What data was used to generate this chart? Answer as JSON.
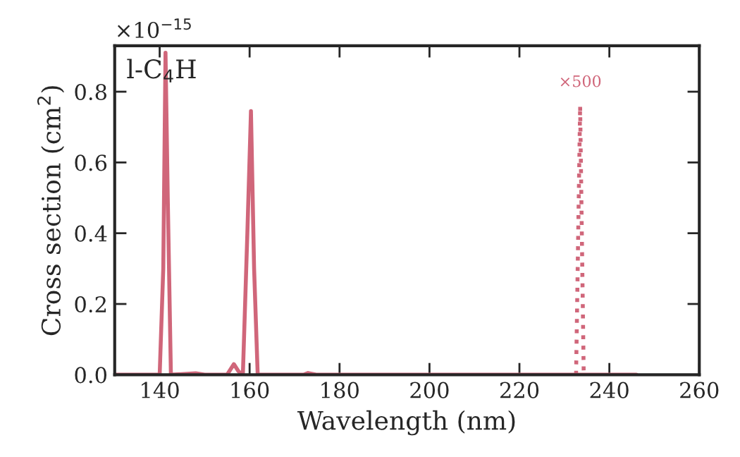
{
  "chart_data": {
    "type": "line",
    "xlabel": "Wavelength (nm)",
    "ylabel": "Cross section (cm$^{2}$)",
    "annotations": [
      "×10$^{−15}$",
      "l-C$_{4}$H",
      "×500"
    ],
    "series": [
      {
        "color": "#d0667a",
        "line_style": "solid",
        "x": [
          130,
          140,
          140.8,
          141.3,
          141.8,
          142.5,
          148,
          150,
          155,
          156.5,
          157.5,
          158.5,
          159.5,
          160.3,
          161,
          161.8,
          172,
          173,
          175,
          246
        ],
        "values": [
          0,
          0,
          0.3,
          0.91,
          0.5,
          0,
          0.004,
          0,
          0,
          0.03,
          0.01,
          0,
          0.4,
          0.745,
          0.3,
          0,
          0,
          0.005,
          0,
          0
        ]
      },
      {
        "color": "#d0667a",
        "line_style": "dotted",
        "x": [
          232.6,
          233.5,
          234.3
        ],
        "values": [
          0,
          0.76,
          0
        ]
      }
    ],
    "xlim": [
      130,
      260
    ],
    "xticks": [
      140,
      160,
      180,
      200,
      220,
      240,
      260
    ],
    "ylim": [
      0,
      0.93
    ],
    "yticks": [
      {
        "value": 0,
        "label": "0.0"
      },
      0.2,
      0.4,
      0.6,
      0.8
    ],
    "grid": false,
    "legend": false
  }
}
